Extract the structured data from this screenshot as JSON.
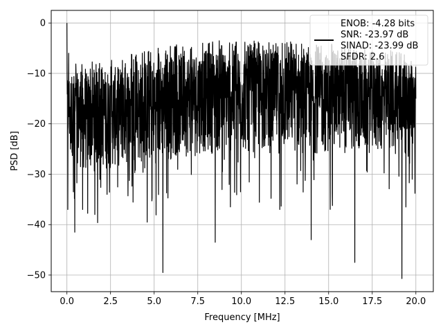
{
  "chart_data": {
    "type": "line",
    "title": "",
    "xlabel": "Frequency [MHz]",
    "ylabel": "PSD [dB]",
    "xlim": [
      -0.9,
      21.0
    ],
    "ylim": [
      -53.3,
      2.5
    ],
    "x_ticks": [
      0.0,
      2.5,
      5.0,
      7.5,
      10.0,
      12.5,
      15.0,
      17.5,
      20.0
    ],
    "x_tick_labels": [
      "0.0",
      "2.5",
      "5.0",
      "7.5",
      "10.0",
      "12.5",
      "15.0",
      "17.5",
      "20.0"
    ],
    "y_ticks": [
      0,
      -10,
      -20,
      -30,
      -40,
      -50
    ],
    "y_tick_labels": [
      "0",
      "−10",
      "−20",
      "−30",
      "−40",
      "−50"
    ],
    "grid": true,
    "legend_position": "top-right",
    "series": [
      {
        "name": "ENOB: -4.28 bits\nSNR: -23.97 dB\nSINAD: -23.99 dB\nSFDR: 2.6",
        "color": "#000000",
        "x_range": [
          0.0,
          20.0
        ],
        "description_points": {
          "x": [
            0.0,
            0.05,
            0.1,
            0.2,
            0.45,
            0.9,
            1.6,
            2.3,
            4.6,
            5.5,
            8.5,
            12.2,
            14.0,
            16.5,
            19.2,
            20.0
          ],
          "y": [
            0.0,
            -37.0,
            -6.0,
            -25.0,
            -41.5,
            -37.0,
            -38.0,
            -34.0,
            -39.5,
            -49.5,
            -43.5,
            -37.0,
            -43.0,
            -47.5,
            -50.7,
            -15.0
          ]
        },
        "trend": {
          "upper_envelope": {
            "x": [
              0.0,
              1.0,
              2.5,
              5.0,
              7.5,
              10.0,
              12.5,
              15.0,
              17.5,
              20.0
            ],
            "y": [
              -10,
              -10,
              -9,
              -7,
              -5.5,
              -5.5,
              -5.5,
              -6,
              -7,
              -8
            ]
          },
          "lower_envelope": {
            "x": [
              0.0,
              1.0,
              2.5,
              5.0,
              7.5,
              10.0,
              12.5,
              15.0,
              17.5,
              20.0
            ],
            "y": [
              -25,
              -30,
              -29,
              -28,
              -26,
              -26,
              -26,
              -26,
              -26,
              -26
            ]
          }
        }
      }
    ],
    "legend_lines": [
      "ENOB: -4.28 bits",
      "SNR: -23.97 dB",
      "SINAD: -23.99 dB",
      "SFDR: 2.6"
    ]
  }
}
